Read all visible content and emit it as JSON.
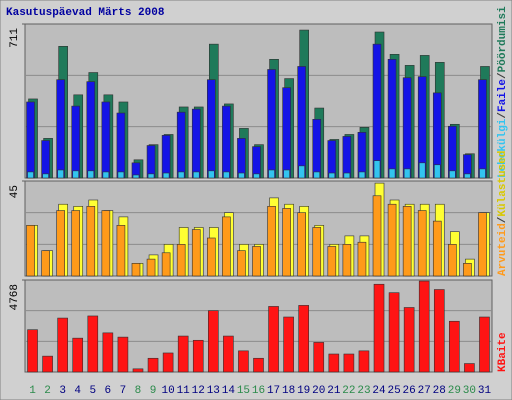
{
  "chart_data": [
    {
      "type": "bar",
      "title": "Kasutuspäevad Märts 2008",
      "legend_separator": "/",
      "categories": [
        "1",
        "2",
        "3",
        "4",
        "5",
        "6",
        "7",
        "8",
        "9",
        "10",
        "11",
        "12",
        "13",
        "14",
        "15",
        "16",
        "17",
        "18",
        "19",
        "20",
        "21",
        "22",
        "23",
        "24",
        "25",
        "26",
        "27",
        "28",
        "29",
        "30",
        "31"
      ],
      "category_colors": [
        "#2a8a4a",
        "#2a8a4a",
        "#000080",
        "#000080",
        "#000080",
        "#000080",
        "#000080",
        "#2a8a4a",
        "#2a8a4a",
        "#000080",
        "#000080",
        "#000080",
        "#000080",
        "#000080",
        "#2a8a4a",
        "#2a8a4a",
        "#000080",
        "#000080",
        "#000080",
        "#000080",
        "#000080",
        "#2a8a4a",
        "#2a8a4a",
        "#000080",
        "#000080",
        "#000080",
        "#000080",
        "#000080",
        "#2a8a4a",
        "#2a8a4a",
        "#000080"
      ],
      "ylim": [
        0,
        711
      ],
      "yticks": [
        711
      ],
      "series": [
        {
          "name": "Pöördumisi",
          "color": "#1f7a5a",
          "values": [
            365,
            183,
            608,
            384,
            487,
            384,
            351,
            84,
            154,
            201,
            328,
            328,
            618,
            342,
            229,
            154,
            548,
            459,
            683,
            323,
            178,
            201,
            234,
            674,
            571,
            520,
            566,
            534,
            248,
            112,
            515
          ]
        },
        {
          "name": "Faile",
          "color": "#1414e6",
          "values": [
            351,
            173,
            454,
            332,
            445,
            351,
            300,
            70,
            150,
            197,
            304,
            318,
            454,
            332,
            183,
            145,
            501,
            417,
            515,
            271,
            173,
            192,
            211,
            618,
            548,
            463,
            468,
            393,
            239,
            108,
            454
          ]
        },
        {
          "name": "Lehekülgi",
          "color": "#33c4f0",
          "values": [
            28,
            19,
            37,
            33,
            33,
            28,
            28,
            14,
            19,
            23,
            28,
            28,
            33,
            28,
            23,
            19,
            37,
            37,
            56,
            28,
            23,
            23,
            28,
            80,
            42,
            42,
            70,
            61,
            33,
            19,
            42
          ]
        }
      ]
    },
    {
      "type": "bar",
      "ylim": [
        0,
        45
      ],
      "yticks": [
        45
      ],
      "series": [
        {
          "name": "Külastused",
          "color": "#ffff33",
          "values": [
            24,
            12,
            34,
            33,
            36,
            31,
            28,
            6,
            10,
            15,
            23,
            23,
            23,
            30,
            15,
            15,
            37,
            34,
            33,
            24,
            15,
            19,
            19,
            44,
            36,
            34,
            34,
            34,
            21,
            8,
            30
          ]
        },
        {
          "name": "Arvuteid",
          "color": "#ff9a1a",
          "values": [
            24,
            12,
            31,
            31,
            33,
            31,
            24,
            6,
            8,
            11,
            15,
            22,
            18,
            28,
            12,
            14,
            33,
            32,
            30,
            23,
            14,
            15,
            16,
            38,
            34,
            33,
            31,
            26,
            15,
            6,
            30
          ]
        }
      ]
    },
    {
      "type": "bar",
      "ylim": [
        0,
        4768
      ],
      "yticks": [
        4768
      ],
      "series": [
        {
          "name": "KBaite",
          "color": "#ff1414",
          "values": [
            2192,
            822,
            2795,
            1754,
            2904,
            2028,
            1808,
            164,
            712,
            986,
            1863,
            1644,
            3178,
            1863,
            1096,
            712,
            3398,
            2850,
            3452,
            1534,
            932,
            932,
            1096,
            4548,
            4110,
            3343,
            4713,
            4274,
            2630,
            438,
            2850
          ]
        }
      ]
    }
  ]
}
